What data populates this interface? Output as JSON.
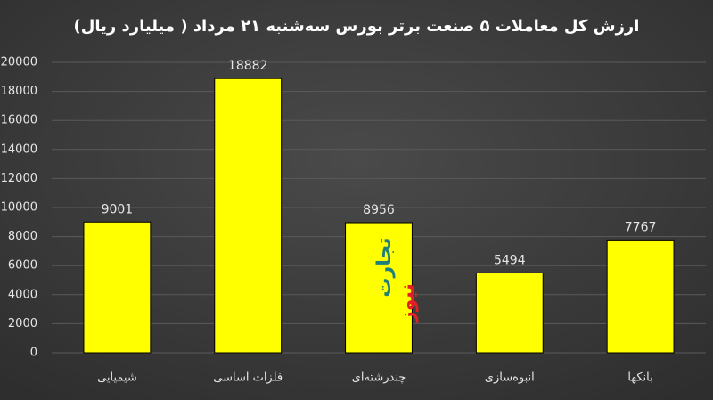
{
  "chart_data": {
    "type": "bar",
    "title": "ارزش کل معاملات ۵ صنعت برتر بورس سه‌شنبه ۲۱ مرداد ( میلیارد ریال)",
    "categories": [
      "شیمیایی",
      "فلزات اساسی",
      "چندرشته‌ای",
      "انبوه‌سازی",
      "بانکها"
    ],
    "values": [
      9001,
      18882,
      8956,
      5494,
      7767
    ],
    "color": "#ffff00",
    "ylim": [
      0,
      20000
    ],
    "yticks": [
      0,
      2000,
      4000,
      6000,
      8000,
      10000,
      12000,
      14000,
      16000,
      18000,
      20000
    ],
    "grid": true,
    "watermark": [
      "تجارت",
      "نیوز"
    ]
  }
}
